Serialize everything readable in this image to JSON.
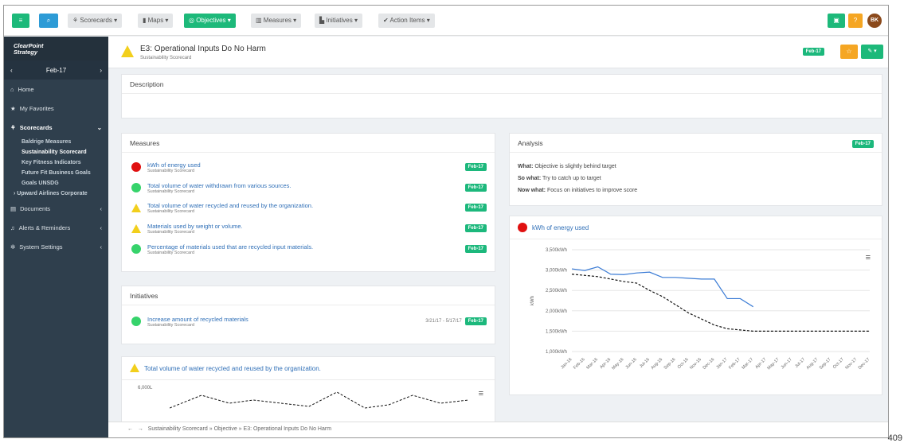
{
  "toolbar": {
    "scorecards": "Scorecards",
    "maps": "Maps",
    "objectives": "Objectives",
    "measures": "Measures",
    "initiatives": "Initiatives",
    "action_items": "Action Items",
    "avatar": "BK",
    "help": "?"
  },
  "sidebar": {
    "logo_line1": "ClearPoint",
    "logo_line2": "Strategy",
    "period": "Feb-17",
    "home": "Home",
    "favorites": "My Favorites",
    "scorecards": "Scorecards",
    "scorecard_items": [
      "Baldrige Measures",
      "Sustainability Scorecard",
      "Key Fitness Indicators",
      "Future Fit Business Goals",
      "Goals UNSDG"
    ],
    "upward": "Upward Airlines Corporate",
    "documents": "Documents",
    "alerts": "Alerts & Reminders",
    "settings": "System Settings"
  },
  "header": {
    "title": "E3: Operational Inputs Do No Harm",
    "subtitle": "Sustainability Scorecard",
    "period_badge": "Feb-17"
  },
  "description": {
    "title": "Description"
  },
  "measures": {
    "title": "Measures",
    "items": [
      {
        "name": "kWh of energy used",
        "scorecard": "Sustainability Scorecard",
        "badge": "Feb-17",
        "status": "red"
      },
      {
        "name": "Total volume of water withdrawn from various sources.",
        "scorecard": "Sustainability Scorecard",
        "badge": "Feb-17",
        "status": "green"
      },
      {
        "name": "Total volume of water recycled and reused by the organization.",
        "scorecard": "Sustainability Scorecard",
        "badge": "Feb-17",
        "status": "yellow"
      },
      {
        "name": "Materials used by weight or volume.",
        "scorecard": "Sustainability Scorecard",
        "badge": "Feb-17",
        "status": "yellow"
      },
      {
        "name": "Percentage of materials used that are recycled input materials.",
        "scorecard": "Sustainability Scorecard",
        "badge": "Feb-17",
        "status": "green"
      }
    ]
  },
  "initiatives": {
    "title": "Initiatives",
    "item": {
      "name": "Increase amount of recycled materials",
      "scorecard": "Sustainability Scorecard",
      "dates": "3/21/17 - 5/17/17",
      "badge": "Feb-17"
    }
  },
  "water_chart": {
    "title": "Total volume of water recycled and reused by the organization.",
    "y_tick": "6,000L"
  },
  "analysis": {
    "title": "Analysis",
    "badge": "Feb-17",
    "what_label": "What:",
    "what": "Objective is slightly behind target",
    "so_what_label": "So what:",
    "so_what": "Try to catch up to target",
    "now_what_label": "Now what:",
    "now_what": "Focus on initiatives to improve score"
  },
  "energy_chart": {
    "title": "kWh of energy used",
    "ylabel": "kWh",
    "yticks": [
      "3,500kWh",
      "3,000kWh",
      "2,500kWh",
      "2,000kWh",
      "1,500kWh",
      "1,000kWh"
    ],
    "xticks": [
      "Jan-16",
      "Feb-16",
      "Mar-16",
      "Apr-16",
      "May-16",
      "Jun-16",
      "Jul-16",
      "Aug-16",
      "Sep-16",
      "Oct-16",
      "Nov-16",
      "Dec-16",
      "Jan-17",
      "Feb-17",
      "Mar-17",
      "Apr-17",
      "May-17",
      "Jun-17",
      "Jul-17",
      "Aug-17",
      "Sep-17",
      "Oct-17",
      "Nov-17",
      "Dec-17"
    ]
  },
  "chart_data": {
    "type": "line",
    "ylim": [
      1000,
      3500
    ],
    "series": [
      {
        "values": [
          3030,
          2990,
          3080,
          2900,
          2890,
          2930,
          2950,
          2820,
          2820,
          2800,
          2780,
          2780,
          2300,
          2300,
          2100
        ]
      },
      {
        "values": [
          2900,
          2870,
          2840,
          2780,
          2720,
          2680,
          2500,
          2350,
          2150,
          1950,
          1800,
          1650,
          1560,
          1530,
          1500,
          1500,
          1500,
          1500,
          1500,
          1500,
          1500,
          1500,
          1500,
          1500
        ]
      }
    ]
  },
  "breadcrumb": "Sustainability Scorecard » Objective » E3: Operational Inputs Do No Harm",
  "page_number": "409",
  "colors": {
    "accent": "#2d9bd6",
    "success": "#1db97a",
    "warning": "#f5a623",
    "danger": "#e01010"
  }
}
